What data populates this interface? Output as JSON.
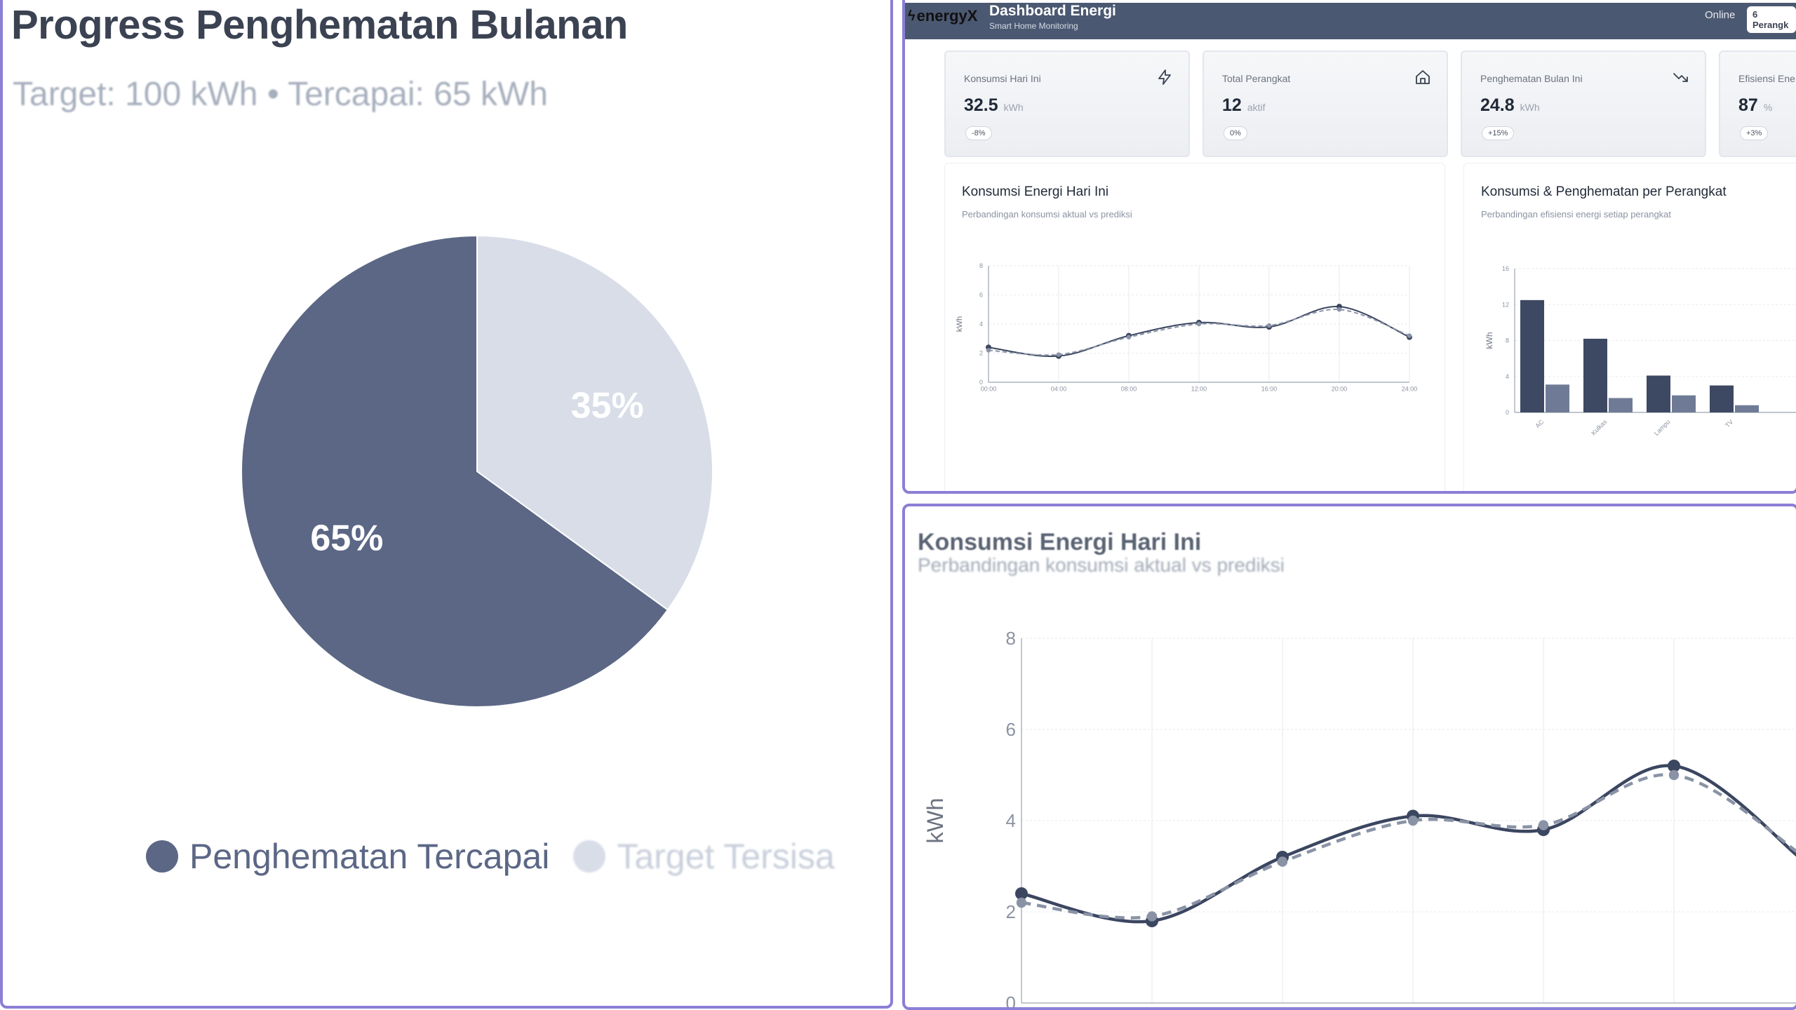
{
  "left_panel": {
    "title": "Progress Penghematan Bulanan",
    "subtitle": "Target: 100 kWh • Tercapai: 65 kWh",
    "legend": [
      {
        "label": "Penghematan Tercapai",
        "color": "#5b6785"
      },
      {
        "label": "Target Tersisa",
        "color": "#d8dde8"
      }
    ],
    "slice_labels": [
      "65%",
      "35%"
    ]
  },
  "dashboard": {
    "logo": "energyX",
    "title": "Dashboard Energi",
    "subtitle": "Smart Home Monitoring",
    "status": "Online",
    "device_badge": "6 Perangk",
    "stats": [
      {
        "label": "Konsumsi Hari Ini",
        "value": "32.5",
        "unit": "kWh",
        "badge": "-8%",
        "icon": "lightning-icon"
      },
      {
        "label": "Total Perangkat",
        "value": "12",
        "unit": "aktif",
        "badge": "0%",
        "icon": "home-icon"
      },
      {
        "label": "Penghematan Bulan Ini",
        "value": "24.8",
        "unit": "kWh",
        "badge": "+15%",
        "icon": "trend-down-icon"
      },
      {
        "label": "Efisiensi Ene",
        "value": "87",
        "unit": "%",
        "badge": "+3%",
        "icon": ""
      }
    ],
    "line_card": {
      "title": "Konsumsi Energi Hari Ini",
      "subtitle": "Perbandingan konsumsi aktual vs prediksi"
    },
    "bar_card": {
      "title": "Konsumsi & Penghematan per Perangkat",
      "subtitle": "Perbandingan efisiensi energi setiap perangkat"
    }
  },
  "bottom_panel": {
    "title": "Konsumsi Energi Hari Ini",
    "subtitle": "Perbandingan konsumsi aktual vs prediksi"
  },
  "chart_data": [
    {
      "type": "pie",
      "title": "Progress Penghematan Bulanan",
      "labels": [
        "Penghematan Tercapai",
        "Target Tersisa"
      ],
      "values": [
        65,
        35
      ],
      "colors": [
        "#5b6785",
        "#d8dde8"
      ]
    },
    {
      "type": "line",
      "title": "Konsumsi Energi Hari Ini",
      "x": [
        "00:00",
        "04:00",
        "08:00",
        "12:00",
        "16:00",
        "20:00",
        "24:00"
      ],
      "ylabel": "kWh",
      "ylim": [
        0,
        8
      ],
      "yticks": [
        0,
        2,
        4,
        6,
        8
      ],
      "series": [
        {
          "values": [
            2.4,
            1.8,
            3.2,
            4.1,
            3.8,
            5.2,
            3.1
          ],
          "color": "#3b4660",
          "style": "solid"
        },
        {
          "values": [
            2.2,
            1.9,
            3.1,
            4.0,
            3.9,
            5.0,
            3.2
          ],
          "color": "#8a93a6",
          "style": "dashed"
        }
      ]
    },
    {
      "type": "bar",
      "title": "Konsumsi & Penghematan per Perangkat",
      "categories": [
        "AC",
        "Kulkas",
        "Lampu",
        "TV"
      ],
      "ylabel": "kWh",
      "ylim": [
        0,
        16
      ],
      "yticks": [
        0,
        4,
        8,
        12,
        16
      ],
      "series": [
        {
          "values": [
            12.5,
            8.2,
            4.1,
            3.0
          ],
          "color": "#3d4863"
        },
        {
          "values": [
            3.1,
            1.6,
            1.9,
            0.8
          ],
          "color": "#6f7b96"
        }
      ]
    }
  ]
}
